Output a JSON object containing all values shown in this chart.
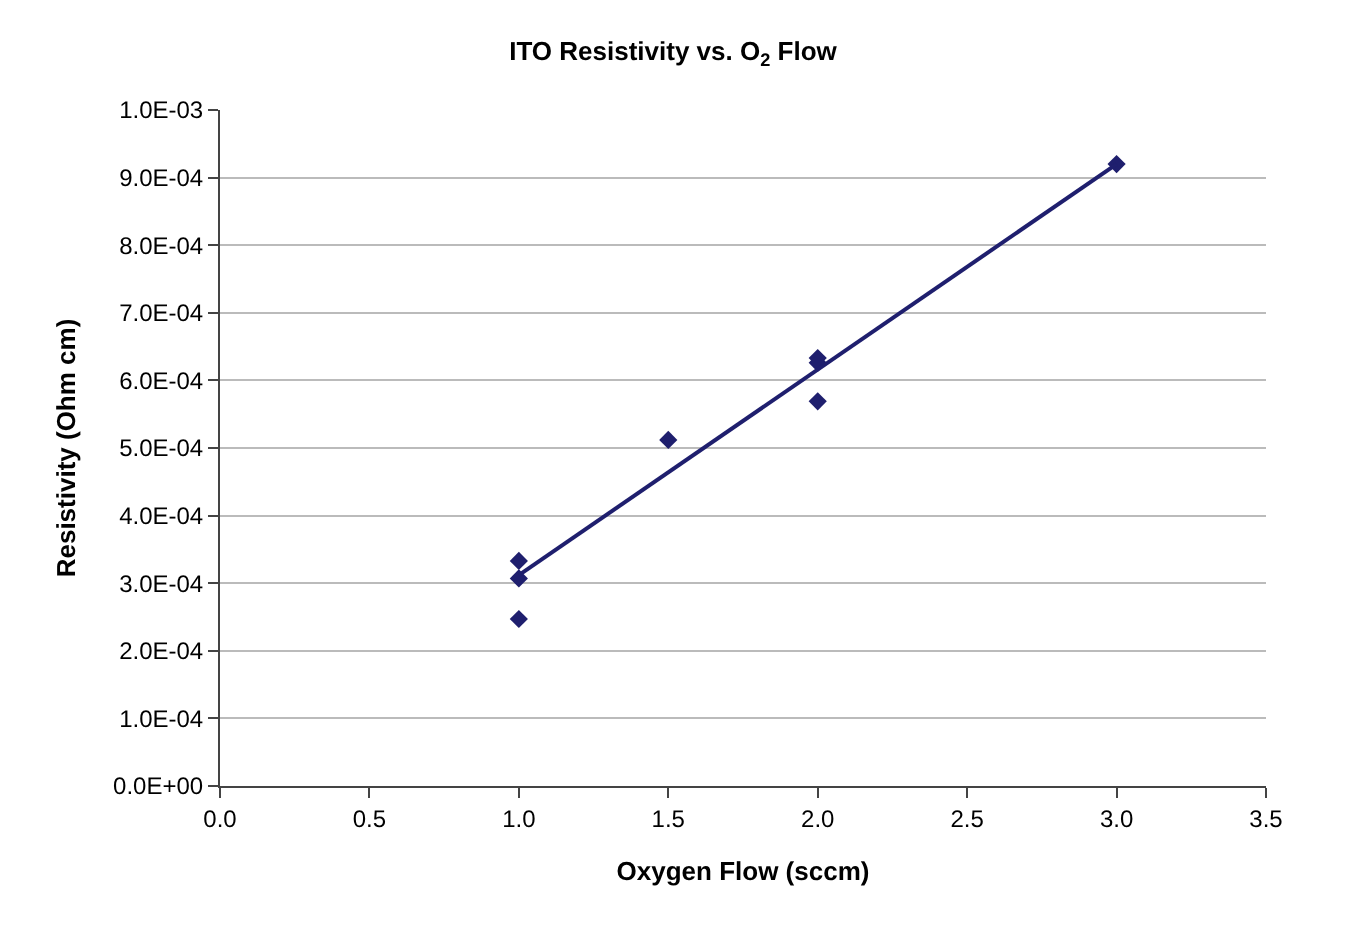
{
  "chart_data": {
    "type": "scatter",
    "title": "ITO Resistivity vs. O$_{2}$ Flow",
    "xlabel": "Oxygen Flow (sccm)",
    "ylabel": "Resistivity (Ohm cm)",
    "x": [
      1.0,
      1.0,
      1.0,
      1.5,
      2.0,
      2.0,
      2.0,
      3.0
    ],
    "series": [
      {
        "color": "#1f1f6e",
        "values": [
          0.000333,
          0.000307,
          0.000247,
          0.000512,
          0.000633,
          0.000626,
          0.000569,
          0.00092
        ]
      },
      {
        "type": "line",
        "marker": "none",
        "color": "#1f1f6e",
        "x": [
          1.0,
          3.0
        ],
        "values": [
          0.000312,
          0.00092
        ]
      }
    ],
    "xlim": [
      0,
      3.5
    ],
    "xticks": [
      {
        "value": 0,
        "label": "0.0"
      },
      0.5,
      {
        "value": 1,
        "label": "1.0"
      },
      1.5,
      {
        "value": 2,
        "label": "2.0"
      },
      2.5,
      {
        "value": 3,
        "label": "3.0"
      },
      3.5
    ],
    "ylim": [
      0,
      0.001
    ],
    "yticks": [
      {
        "value": 0,
        "label": "0.0E+00"
      },
      {
        "value": 0.0001,
        "label": "1.0E-04"
      },
      {
        "value": 0.0002,
        "label": "2.0E-04"
      },
      {
        "value": 0.0003,
        "label": "3.0E-04"
      },
      {
        "value": 0.0004,
        "label": "4.0E-04"
      },
      {
        "value": 0.0005,
        "label": "5.0E-04"
      },
      {
        "value": 0.0006,
        "label": "6.0E-04"
      },
      {
        "value": 0.0007,
        "label": "7.0E-04"
      },
      {
        "value": 0.0008,
        "label": "8.0E-04"
      },
      {
        "value": 0.0009,
        "label": "9.0E-04"
      },
      {
        "value": 0.001,
        "label": "1.0E-03"
      }
    ],
    "grid": "y",
    "marker": "diamond"
  }
}
